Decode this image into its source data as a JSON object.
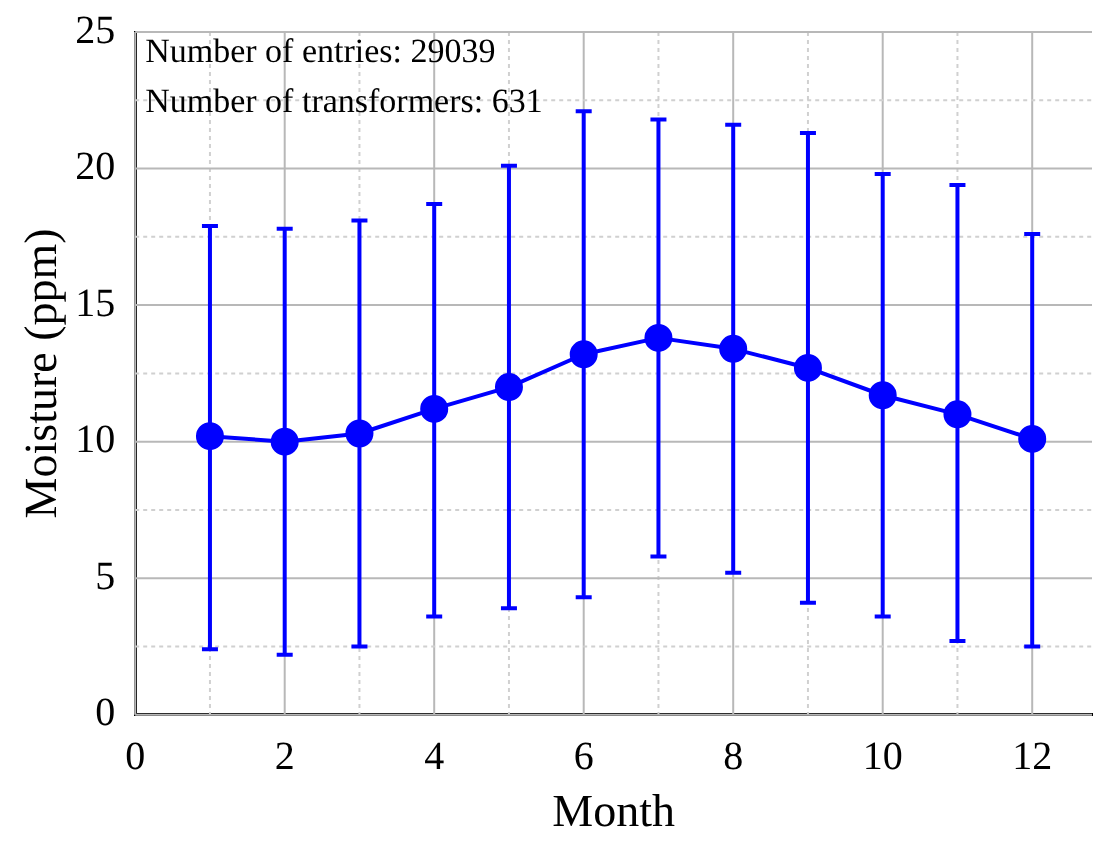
{
  "chart_data": {
    "type": "line",
    "xlabel": "Month",
    "ylabel": "Moisture (ppm)",
    "annotations": [
      "Number of entries: 29039",
      "Number of transformers: 631"
    ],
    "x": [
      1,
      2,
      3,
      4,
      5,
      6,
      7,
      8,
      9,
      10,
      11,
      12
    ],
    "series": [
      {
        "color": "#0000ff",
        "values": [
          10.2,
          10.0,
          10.3,
          11.2,
          12.0,
          13.2,
          13.8,
          13.4,
          12.7,
          11.7,
          11.0,
          10.1
        ],
        "errors": [
          [
            2.4,
            17.9
          ],
          [
            2.2,
            17.8
          ],
          [
            2.5,
            18.1
          ],
          [
            3.6,
            18.7
          ],
          [
            3.9,
            20.1
          ],
          [
            4.3,
            22.1
          ],
          [
            5.8,
            21.8
          ],
          [
            5.2,
            21.6
          ],
          [
            4.1,
            21.3
          ],
          [
            3.6,
            19.8
          ],
          [
            2.7,
            19.4
          ],
          [
            2.5,
            17.6
          ]
        ]
      }
    ],
    "xlim": [
      0,
      12.8
    ],
    "xticks": [
      0,
      {
        "value": 1,
        "label": null
      },
      2,
      {
        "value": 3,
        "label": null
      },
      4,
      {
        "value": 5,
        "label": null
      },
      6,
      {
        "value": 7,
        "label": null
      },
      8,
      {
        "value": 9,
        "label": null
      },
      10,
      {
        "value": 11,
        "label": null
      },
      12
    ],
    "ylim": [
      0,
      25
    ],
    "yticks": [
      0,
      {
        "value": 2.5,
        "label": null
      },
      5,
      {
        "value": 7.5,
        "label": null
      },
      10,
      {
        "value": 12.5,
        "label": null
      },
      15,
      {
        "value": 17.5,
        "label": null
      },
      20,
      {
        "value": 22.5,
        "label": null
      },
      25
    ],
    "grid": true,
    "legend": false,
    "marker": "circle",
    "line_style": "solid"
  }
}
